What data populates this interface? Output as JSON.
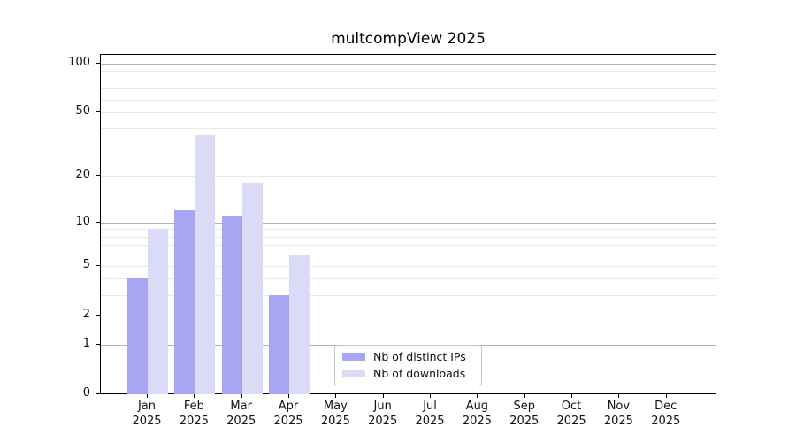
{
  "title": "multcompView 2025",
  "chart_data": {
    "type": "bar",
    "title": "multcompView 2025",
    "categories": [
      "Jan",
      "Feb",
      "Mar",
      "Apr",
      "May",
      "Jun",
      "Jul",
      "Aug",
      "Sep",
      "Oct",
      "Nov",
      "Dec"
    ],
    "year": "2025",
    "series": [
      {
        "name": "Nb of distinct IPs",
        "color": "#a6a6f2",
        "values": [
          4,
          12,
          11,
          3,
          0,
          0,
          0,
          0,
          0,
          0,
          0,
          0
        ]
      },
      {
        "name": "Nb of downloads",
        "color": "#dbdbf7",
        "values": [
          9,
          36,
          18,
          6,
          0,
          0,
          0,
          0,
          0,
          0,
          0,
          0
        ]
      }
    ],
    "xlabel": "",
    "ylabel": "",
    "yscale": "log1p",
    "ylim": [
      0,
      113
    ],
    "ytick_labels": [
      0,
      1,
      2,
      5,
      10,
      20,
      50,
      100
    ],
    "major_gridlines": [
      1,
      10,
      100
    ],
    "minor_gridlines": [
      2,
      3,
      4,
      5,
      6,
      7,
      8,
      9,
      20,
      30,
      40,
      50,
      60,
      70,
      80,
      90,
      110
    ],
    "grid": true,
    "legend_position": "lower center",
    "colors": {
      "axis": "#000000",
      "major_grid": "#b2b2b2",
      "minor_grid": "#e8e8e8",
      "background": "#ffffff"
    }
  }
}
